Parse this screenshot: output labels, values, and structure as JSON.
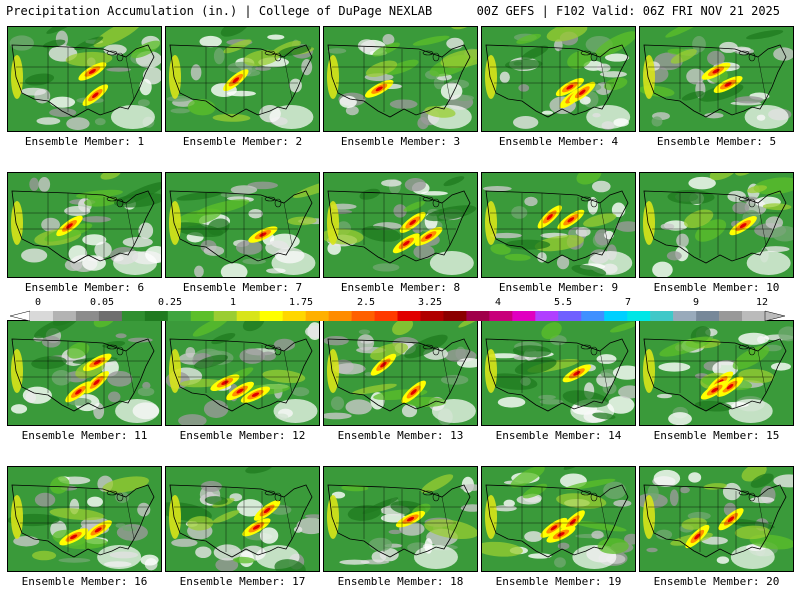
{
  "header": {
    "title": "Precipitation Accumulation (in.) | College of DuPage NEXLAB",
    "run_info": "00Z GEFS | F102 Valid: 06Z FRI NOV 21 2025"
  },
  "colorbar": {
    "labels": [
      "0",
      "0.05",
      "0.25",
      "1",
      "1.75",
      "2.5",
      "3.25",
      "4",
      "5.5",
      "7",
      "9",
      "12"
    ],
    "colors": [
      "#d9d9d9",
      "#b3b3b3",
      "#8c8c8c",
      "#6e6e6e",
      "#2f8f2f",
      "#1f7a1f",
      "#3fa53f",
      "#5cbf2a",
      "#9acd32",
      "#d8e41a",
      "#ffff00",
      "#ffd700",
      "#ffb000",
      "#ff8c00",
      "#ff6000",
      "#ff3a00",
      "#e00000",
      "#b00000",
      "#8b0000",
      "#a0004a",
      "#c8007a",
      "#e000c0",
      "#b040ff",
      "#7060ff",
      "#4090ff",
      "#00d0ff",
      "#00e6e6",
      "#40c8c8",
      "#9ab",
      "#789",
      "#999",
      "#bbb"
    ]
  },
  "members": [
    {
      "label": "Ensemble Member: 1"
    },
    {
      "label": "Ensemble Member: 2"
    },
    {
      "label": "Ensemble Member: 3"
    },
    {
      "label": "Ensemble Member: 4"
    },
    {
      "label": "Ensemble Member: 5"
    },
    {
      "label": "Ensemble Member: 6"
    },
    {
      "label": "Ensemble Member: 7"
    },
    {
      "label": "Ensemble Member: 8"
    },
    {
      "label": "Ensemble Member: 9"
    },
    {
      "label": "Ensemble Member: 10"
    },
    {
      "label": "Ensemble Member: 11"
    },
    {
      "label": "Ensemble Member: 12"
    },
    {
      "label": "Ensemble Member: 13"
    },
    {
      "label": "Ensemble Member: 14"
    },
    {
      "label": "Ensemble Member: 15"
    },
    {
      "label": "Ensemble Member: 16"
    },
    {
      "label": "Ensemble Member: 17"
    },
    {
      "label": "Ensemble Member: 18"
    },
    {
      "label": "Ensemble Member: 19"
    },
    {
      "label": "Ensemble Member: 20"
    }
  ]
}
